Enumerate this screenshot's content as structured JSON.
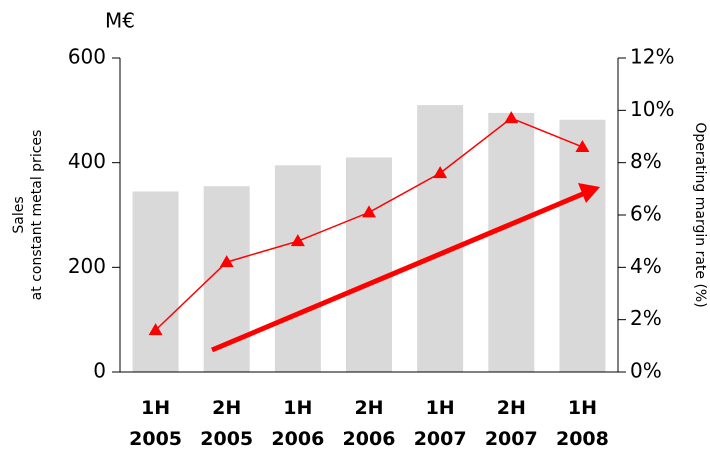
{
  "chart_data": {
    "type": "bar_line",
    "unit": "M€",
    "ylabel": [
      "Sales",
      "at constant metal prices"
    ],
    "y2label": "Operating margin rate (%)",
    "categories": [
      "1H 2005",
      "2H 2005",
      "1H 2006",
      "2H 2006",
      "1H 2007",
      "2H 2007",
      "1H 2008"
    ],
    "series": [
      {
        "name": "Sales",
        "type": "bar",
        "color": "#d9d9d9",
        "values": [
          345,
          355,
          395,
          410,
          510,
          495,
          482
        ]
      },
      {
        "name": "Operating margin rate",
        "type": "line",
        "axis": "y2",
        "color": "#ff0000",
        "values": [
          1.6,
          4.2,
          5.0,
          6.1,
          7.6,
          9.7,
          8.6
        ]
      }
    ],
    "ylim": [
      0,
      600
    ],
    "yticks": [
      0,
      200,
      400,
      600
    ],
    "y2lim": [
      0,
      12
    ],
    "y2ticks": [
      {
        "value": 0,
        "label": "0%"
      },
      {
        "value": 2,
        "label": "2%"
      },
      {
        "value": 4,
        "label": "4%"
      },
      {
        "value": 6,
        "label": "6%"
      },
      {
        "value": 8,
        "label": "8%"
      },
      {
        "value": 10,
        "label": "10%"
      },
      {
        "value": 12,
        "label": "12%"
      }
    ]
  }
}
